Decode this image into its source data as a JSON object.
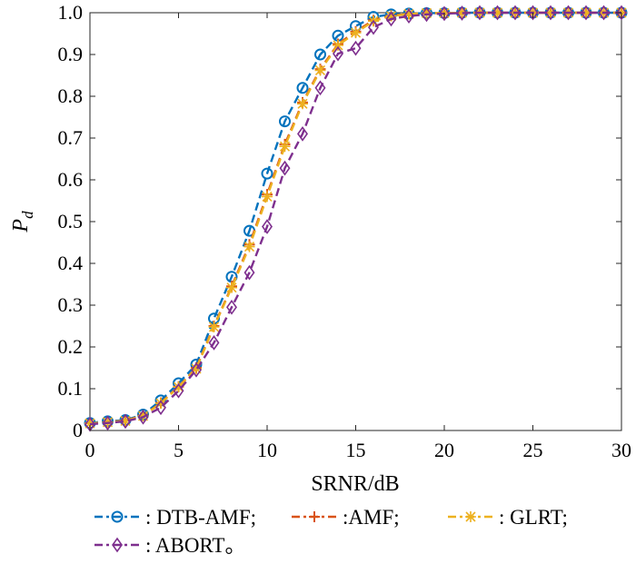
{
  "chart_data": {
    "type": "line",
    "xlabel": "SRNR/dB",
    "ylabel_main": "P",
    "ylabel_sub": "d",
    "xlim": [
      0,
      30
    ],
    "ylim": [
      0,
      1
    ],
    "xticks": [
      "0",
      "5",
      "10",
      "15",
      "20",
      "25",
      "30"
    ],
    "yticks": [
      "0",
      "0.1",
      "0.2",
      "0.3",
      "0.4",
      "0.5",
      "0.6",
      "0.7",
      "0.8",
      "0.9",
      "1.0"
    ],
    "grid": false,
    "legend_position": "bottom",
    "x": [
      0,
      1,
      2,
      3,
      4,
      5,
      6,
      7,
      8,
      9,
      10,
      11,
      12,
      13,
      14,
      15,
      16,
      17,
      18,
      19,
      20,
      21,
      22,
      23,
      24,
      25,
      26,
      27,
      28,
      29,
      30
    ],
    "series": [
      {
        "name": ": DTB-AMF;",
        "color": "#0072BD",
        "marker": "circle",
        "values": [
          0.018,
          0.022,
          0.025,
          0.038,
          0.072,
          0.113,
          0.158,
          0.268,
          0.368,
          0.478,
          0.615,
          0.74,
          0.82,
          0.9,
          0.945,
          0.968,
          0.99,
          0.996,
          0.998,
          0.999,
          0.999,
          1.0,
          1.0,
          1.0,
          1.0,
          1.0,
          1.0,
          1.0,
          1.0,
          1.0,
          1.0
        ]
      },
      {
        "name": ":AMF;",
        "color": "#D95319",
        "marker": "plus",
        "values": [
          0.017,
          0.02,
          0.024,
          0.036,
          0.066,
          0.105,
          0.15,
          0.25,
          0.345,
          0.445,
          0.565,
          0.685,
          0.785,
          0.865,
          0.925,
          0.955,
          0.982,
          0.993,
          0.997,
          0.999,
          0.999,
          1.0,
          1.0,
          1.0,
          1.0,
          1.0,
          1.0,
          1.0,
          1.0,
          1.0,
          1.0
        ]
      },
      {
        "name": ": GLRT;",
        "color": "#EDB120",
        "marker": "star",
        "values": [
          0.017,
          0.02,
          0.023,
          0.035,
          0.065,
          0.104,
          0.148,
          0.248,
          0.342,
          0.44,
          0.56,
          0.68,
          0.782,
          0.862,
          0.922,
          0.952,
          0.98,
          0.992,
          0.997,
          0.999,
          0.999,
          1.0,
          1.0,
          1.0,
          1.0,
          1.0,
          1.0,
          1.0,
          1.0,
          1.0,
          1.0
        ]
      },
      {
        "name": ": ABORT。",
        "color": "#7E2F8E",
        "marker": "diamond",
        "values": [
          0.015,
          0.018,
          0.022,
          0.032,
          0.055,
          0.095,
          0.145,
          0.21,
          0.295,
          0.378,
          0.488,
          0.628,
          0.71,
          0.82,
          0.902,
          0.915,
          0.965,
          0.985,
          0.992,
          0.996,
          0.998,
          0.999,
          1.0,
          1.0,
          1.0,
          1.0,
          1.0,
          1.0,
          1.0,
          1.0,
          1.0
        ]
      }
    ]
  }
}
